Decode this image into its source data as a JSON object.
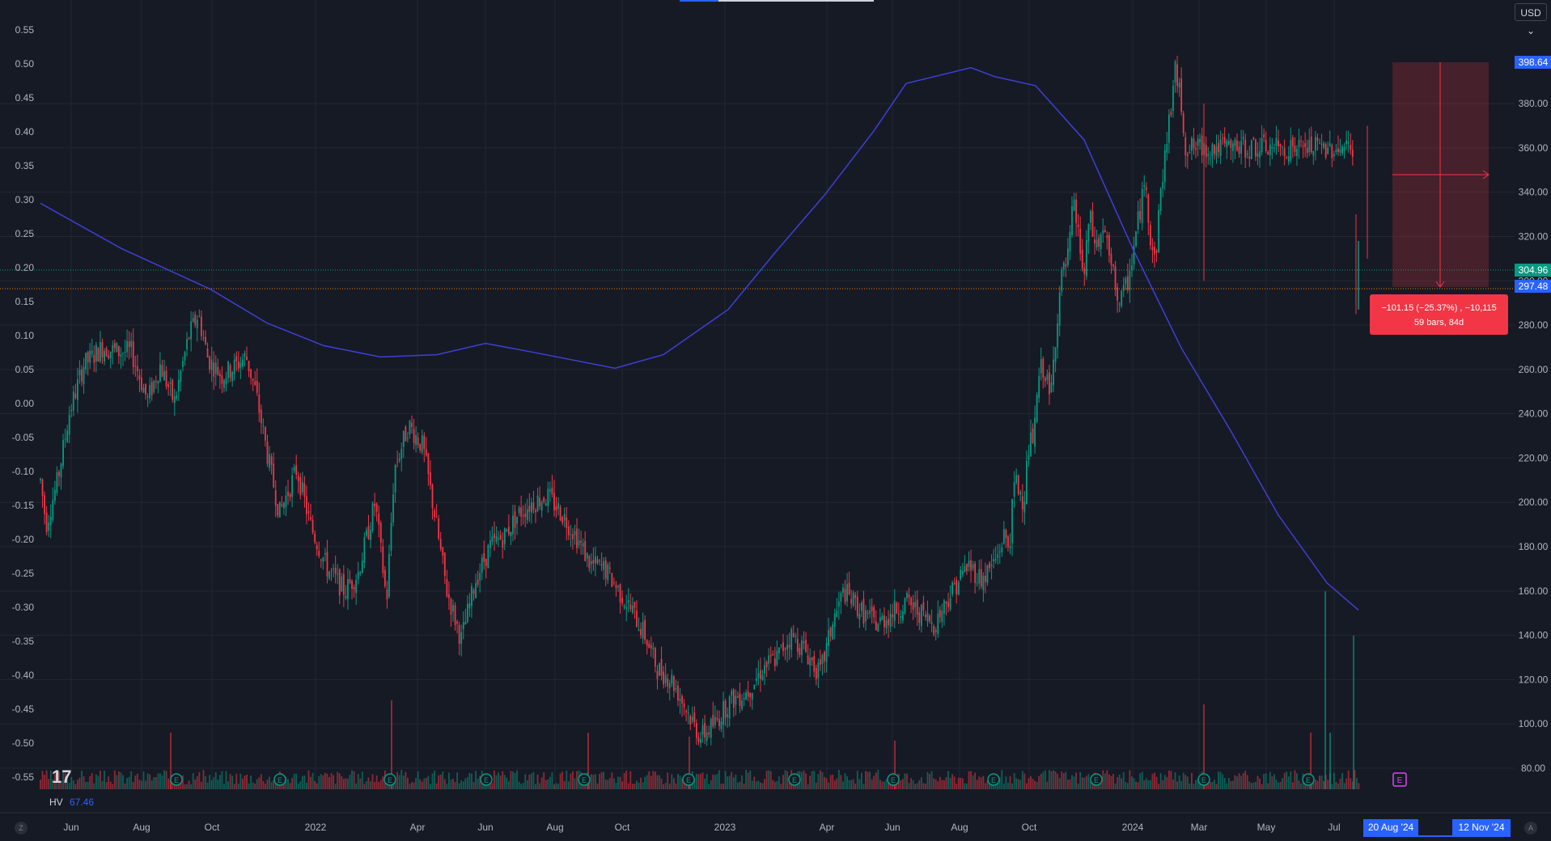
{
  "currency": "USD",
  "indicator": {
    "name": "HV",
    "value": "67.46"
  },
  "measure": {
    "line1": "−101.15 (−25.37%) , −10,115",
    "line2": "59 bars, 84d"
  },
  "price_tags": [
    {
      "value": "398.64",
      "color": "#2962ff"
    },
    {
      "value": "304.96",
      "color": "#089981"
    },
    {
      "value": "297.48",
      "color": "#2962ff"
    }
  ],
  "date_tags": [
    "20 Aug '24",
    "12 Nov '24"
  ],
  "corner_buttons": [
    "Z",
    "A"
  ],
  "colors": {
    "up": "#089981",
    "down": "#f23645",
    "ma": "#3f3fd6",
    "background": "#161a25"
  },
  "chart_data": {
    "type": "candlestick",
    "price_axis": {
      "ticks": [
        "80.00",
        "100.00",
        "120.00",
        "140.00",
        "160.00",
        "180.00",
        "200.00",
        "220.00",
        "240.00",
        "260.00",
        "280.00",
        "300.00",
        "320.00",
        "340.00",
        "360.00",
        "380.00"
      ],
      "range": [
        74,
        414
      ]
    },
    "hv_axis": {
      "ticks": [
        "0.55",
        "0.50",
        "0.45",
        "0.40",
        "0.35",
        "0.30",
        "0.25",
        "0.20",
        "0.15",
        "0.10",
        "0.05",
        "0.00",
        "-0.05",
        "-0.10",
        "-0.15",
        "-0.20",
        "-0.25",
        "-0.30",
        "-0.35",
        "-0.40",
        "-0.45",
        "-0.50",
        "-0.55"
      ]
    },
    "time_axis": {
      "labels": [
        "Jun",
        "Aug",
        "Oct",
        "2022",
        "Apr",
        "Jun",
        "Aug",
        "Oct",
        "2023",
        "Apr",
        "Jun",
        "Aug",
        "Oct",
        "2024",
        "Mar",
        "May",
        "Jul"
      ]
    },
    "price_series": {
      "points": [
        [
          0,
          210
        ],
        [
          0.006,
          190
        ],
        [
          0.018,
          210
        ],
        [
          0.03,
          240
        ],
        [
          0.045,
          262
        ],
        [
          0.065,
          270
        ],
        [
          0.08,
          268
        ],
        [
          0.095,
          268
        ],
        [
          0.112,
          246
        ],
        [
          0.125,
          262
        ],
        [
          0.14,
          245
        ],
        [
          0.155,
          275
        ],
        [
          0.165,
          285
        ],
        [
          0.175,
          265
        ],
        [
          0.19,
          257
        ],
        [
          0.205,
          262
        ],
        [
          0.215,
          266
        ],
        [
          0.225,
          250
        ],
        [
          0.238,
          220
        ],
        [
          0.25,
          195
        ],
        [
          0.268,
          215
        ],
        [
          0.282,
          190
        ],
        [
          0.3,
          170
        ],
        [
          0.318,
          160
        ],
        [
          0.332,
          168
        ],
        [
          0.35,
          200
        ],
        [
          0.362,
          155
        ],
        [
          0.37,
          215
        ],
        [
          0.385,
          235
        ],
        [
          0.4,
          225
        ],
        [
          0.412,
          195
        ],
        [
          0.425,
          160
        ],
        [
          0.44,
          138
        ],
        [
          0.455,
          165
        ],
        [
          0.47,
          180
        ],
        [
          0.485,
          185
        ],
        [
          0.5,
          195
        ],
        [
          0.515,
          200
        ],
        [
          0.53,
          203
        ],
        [
          0.545,
          195
        ],
        [
          0.56,
          185
        ],
        [
          0.575,
          172
        ],
        [
          0.59,
          170
        ],
        [
          0.605,
          160
        ],
        [
          0.62,
          150
        ],
        [
          0.632,
          140
        ],
        [
          0.645,
          125
        ],
        [
          0.66,
          120
        ],
        [
          0.675,
          107
        ],
        [
          0.69,
          94
        ],
        [
          0.705,
          100
        ],
        [
          0.72,
          110
        ],
        [
          0.74,
          115
        ],
        [
          0.755,
          125
        ],
        [
          0.77,
          130
        ],
        [
          0.785,
          140
        ],
        [
          0.8,
          133
        ],
        [
          0.815,
          122
        ],
        [
          0.828,
          145
        ],
        [
          0.84,
          160
        ],
        [
          0.86,
          150
        ],
        [
          0.875,
          145
        ],
        [
          0.89,
          150
        ],
        [
          0.905,
          155
        ],
        [
          0.92,
          150
        ],
        [
          0.935,
          145
        ],
        [
          0.95,
          158
        ],
        [
          0.97,
          172
        ],
        [
          0.985,
          165
        ],
        [
          1.0,
          175
        ]
      ],
      "points2": [
        [
          0,
          175
        ],
        [
          0.02,
          185
        ],
        [
          0.035,
          180
        ],
        [
          0.05,
          210
        ],
        [
          0.065,
          205
        ],
        [
          0.075,
          200
        ],
        [
          0.09,
          225
        ],
        [
          0.105,
          230
        ],
        [
          0.12,
          260
        ],
        [
          0.135,
          260
        ],
        [
          0.15,
          245
        ],
        [
          0.165,
          275
        ],
        [
          0.18,
          300
        ],
        [
          0.2,
          310
        ],
        [
          0.215,
          335
        ],
        [
          0.23,
          320
        ],
        [
          0.245,
          300
        ],
        [
          0.26,
          330
        ],
        [
          0.27,
          320
        ],
        [
          0.285,
          315
        ],
        [
          0.3,
          325
        ],
        [
          0.315,
          310
        ],
        [
          0.33,
          300
        ],
        [
          0.345,
          290
        ],
        [
          0.36,
          295
        ],
        [
          0.375,
          305
        ],
        [
          0.39,
          320
        ],
        [
          0.405,
          335
        ],
        [
          0.42,
          345
        ],
        [
          0.43,
          320
        ],
        [
          0.445,
          308
        ],
        [
          0.46,
          340
        ],
        [
          0.475,
          360
        ],
        [
          0.49,
          380
        ],
        [
          0.5,
          395
        ],
        [
          0.51,
          388
        ],
        [
          0.52,
          378
        ],
        [
          0.53,
          360
        ]
      ]
    }
  }
}
